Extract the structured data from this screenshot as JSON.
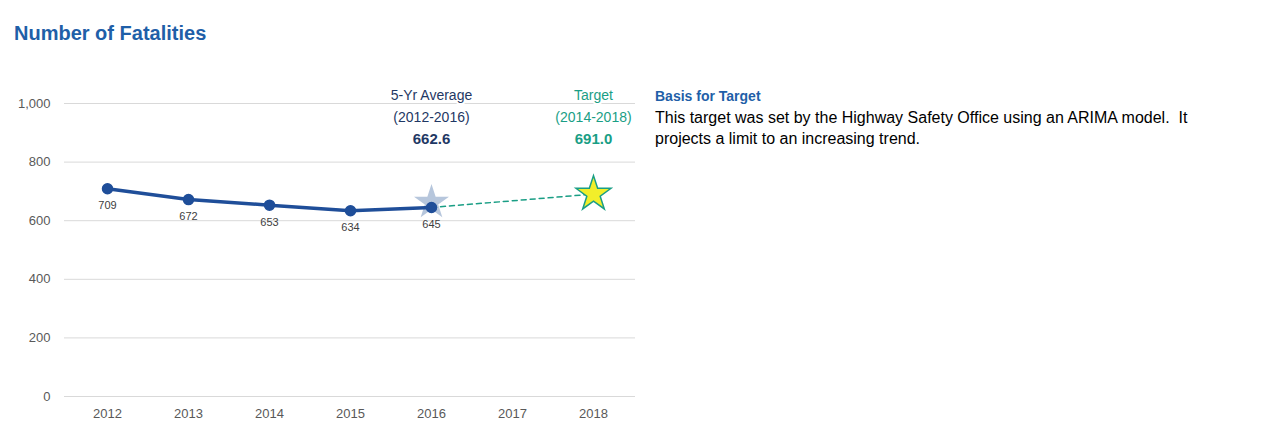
{
  "chart_data": {
    "type": "line",
    "title": "Number of Fatalities",
    "categories": [
      "2012",
      "2013",
      "2014",
      "2015",
      "2016",
      "2017",
      "2018"
    ],
    "values": [
      709,
      672,
      653,
      634,
      645,
      null,
      null
    ],
    "color": "#1f4e99",
    "marker": "circle",
    "data_labels": true,
    "ylim": [
      0,
      1000
    ],
    "yticks": [
      0,
      200,
      400,
      600,
      800,
      {
        "value": 1000,
        "label": "1,000"
      }
    ],
    "grid": true,
    "average": {
      "title": "5-Yr Average",
      "period": "(2012-2016)",
      "value": 662.6,
      "label": "662.6",
      "category": "2016",
      "color": "#1f3864",
      "marker": "star"
    },
    "target": {
      "title": "Target",
      "period": "(2014-2018)",
      "value": 691,
      "label": "691.0",
      "category": "2018",
      "color": "#1a9e85",
      "marker": "star",
      "line_style": "dashed"
    },
    "basis": {
      "title": "Basis for Target",
      "text": "This target was set by the Highway Safety Office using an ARIMA model.  It projects a limit to an increasing trend."
    }
  }
}
